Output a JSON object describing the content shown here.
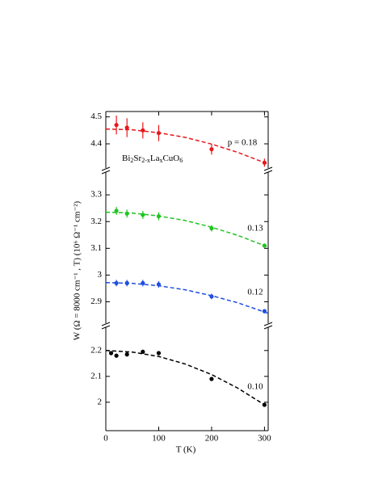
{
  "chart_data": {
    "type": "scatter",
    "xlabel": "T (K)",
    "ylabel": "W (Ω = 8000 cm⁻¹ , T) (10⁶ Ω⁻¹ cm⁻²)",
    "annotation": [
      "Bi",
      "2",
      "Sr",
      "2-x",
      "La",
      "x",
      "CuO",
      "6"
    ],
    "xlim": [
      0,
      307
    ],
    "xticks": [
      0,
      100,
      200,
      300
    ],
    "panels": [
      {
        "ylim": [
          4.31,
          4.52
        ],
        "yticks": [
          4.4,
          4.5
        ],
        "series": [
          {
            "name": "p = 0.18",
            "color": "#e8161b",
            "x": [
              20,
              40,
              70,
              100,
              200,
              300
            ],
            "values": [
              4.47,
              4.46,
              4.45,
              4.44,
              4.38,
              4.33
            ],
            "errors": [
              0.035,
              0.035,
              0.03,
              0.03,
              0.02,
              0.015
            ],
            "fit": {
              "x": [
                0,
                50,
                100,
                150,
                200,
                250,
                300,
                307
              ],
              "values": [
                4.455,
                4.452,
                4.441,
                4.424,
                4.399,
                4.368,
                4.33,
                4.324
              ]
            }
          }
        ]
      },
      {
        "ylim": [
          2.82,
          3.385
        ],
        "yticks": [
          2.9,
          3.0,
          3.1,
          3.2,
          3.3
        ],
        "series": [
          {
            "name": "0.13",
            "color": "#1fc41f",
            "x": [
              20,
              40,
              70,
              100,
              200,
              300
            ],
            "values": [
              3.24,
              3.23,
              3.225,
              3.22,
              3.175,
              3.11
            ],
            "errors": [
              0.015,
              0.015,
              0.015,
              0.015,
              0.012,
              0.008
            ],
            "fit": {
              "x": [
                0,
                50,
                100,
                150,
                200,
                250,
                300,
                307
              ],
              "values": [
                3.235,
                3.232,
                3.221,
                3.204,
                3.179,
                3.148,
                3.11,
                3.104
              ]
            }
          },
          {
            "name": "0.12",
            "color": "#1f4fe0",
            "x": [
              20,
              40,
              70,
              100,
              200,
              300
            ],
            "values": [
              2.97,
              2.97,
              2.97,
              2.965,
              2.92,
              2.865
            ],
            "errors": [
              0.012,
              0.012,
              0.012,
              0.012,
              0.01,
              0.008
            ],
            "fit": {
              "x": [
                0,
                50,
                100,
                150,
                200,
                250,
                300,
                307
              ],
              "values": [
                2.972,
                2.969,
                2.96,
                2.945,
                2.923,
                2.896,
                2.862,
                2.857
              ]
            }
          }
        ]
      },
      {
        "ylim": [
          1.89,
          2.29
        ],
        "yticks": [
          2.0,
          2.1,
          2.2
        ],
        "series": [
          {
            "name": "0.10",
            "color": "#000000",
            "x": [
              10,
              20,
              40,
              70,
              100,
              200,
              300
            ],
            "values": [
              2.19,
              2.18,
              2.185,
              2.195,
              2.19,
              2.09,
              1.99
            ],
            "errors": [
              0.008,
              0.008,
              0.008,
              0.008,
              0.006,
              0.006,
              0.005
            ],
            "fit": {
              "x": [
                0,
                50,
                100,
                150,
                200,
                250,
                300,
                307
              ],
              "values": [
                2.2,
                2.194,
                2.177,
                2.148,
                2.107,
                2.054,
                1.99,
                1.98
              ]
            }
          }
        ]
      }
    ]
  }
}
